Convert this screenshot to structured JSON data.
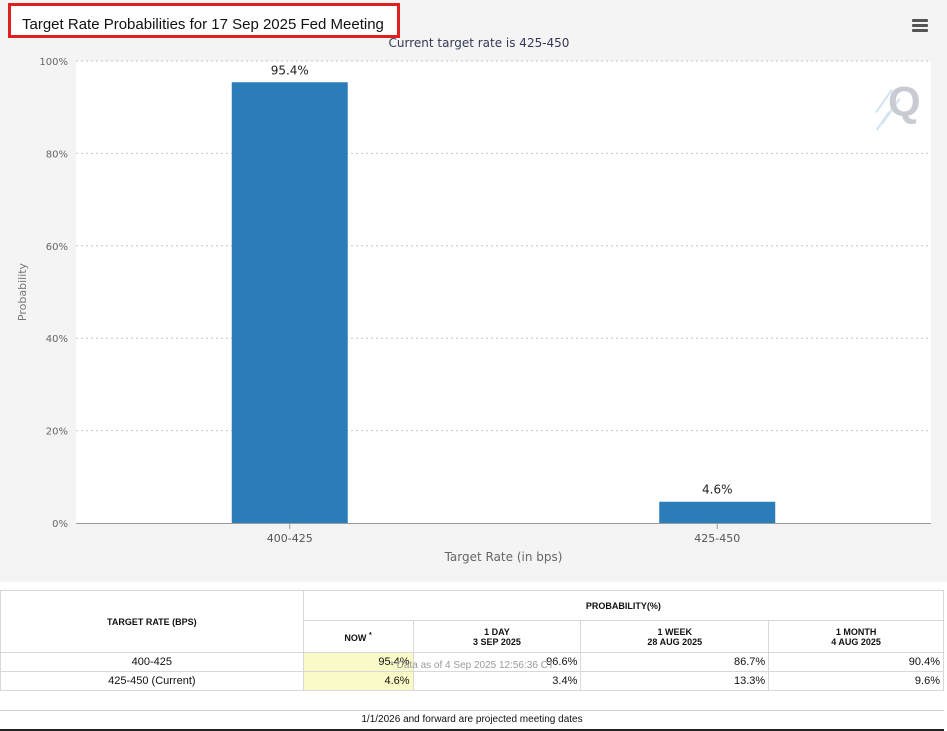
{
  "title": "Target Rate Probabilities for 17 Sep 2025 Fed Meeting",
  "chart_data": {
    "type": "bar",
    "subtitle": "Current target rate is 425-450",
    "categories": [
      "400-425",
      "425-450"
    ],
    "values": [
      95.4,
      4.6
    ],
    "data_labels": [
      "95.4%",
      "4.6%"
    ],
    "xlabel": "Target Rate (in bps)",
    "ylabel": "Probability",
    "ylim": [
      0,
      100
    ],
    "yticks": [
      "0%",
      "20%",
      "40%",
      "60%",
      "80%",
      "100%"
    ],
    "grid": true,
    "bar_color": "#2a7db8"
  },
  "table": {
    "col_header": "TARGET RATE (BPS)",
    "group_header": "PROBABILITY(%)",
    "now_label": "NOW",
    "now_marker": "*",
    "periods": [
      {
        "line1": "1 DAY",
        "line2": "3 SEP 2025"
      },
      {
        "line1": "1 WEEK",
        "line2": "28 AUG 2025"
      },
      {
        "line1": "1 MONTH",
        "line2": "4 AUG 2025"
      }
    ],
    "rows": [
      {
        "rate": "400-425",
        "now": "95.4%",
        "d1": "96.6%",
        "w1": "86.7%",
        "m1": "90.4%"
      },
      {
        "rate": "425-450 (Current)",
        "now": "4.6%",
        "d1": "3.4%",
        "w1": "13.3%",
        "m1": "9.6%"
      }
    ],
    "note": "* Data as of 4 Sep 2025 12:56:36 CT"
  },
  "footer": "1/1/2026 and forward are projected meeting dates",
  "icons": {
    "menu": "hamburger-menu-icon",
    "logo": "q-logo-icon"
  }
}
